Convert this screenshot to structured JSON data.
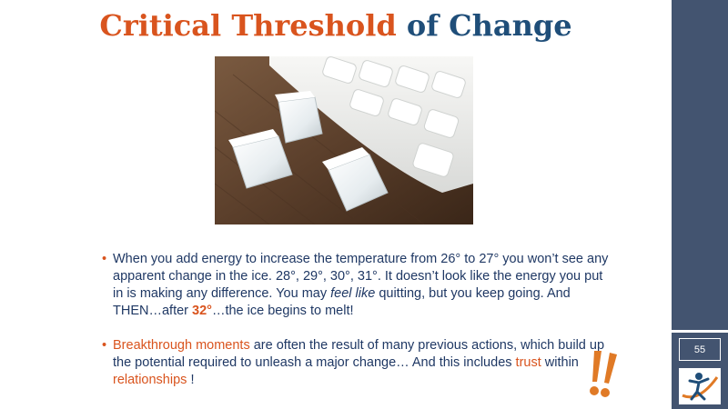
{
  "title": {
    "part1": "Critical Threshold",
    "part2": "of Change"
  },
  "bullet1": {
    "seg1": "When you add energy to increase the temperature from 26° to 27° you won’t see any apparent change in the ice.  28°, 29°, 30°, 31°. It doesn’t look like the energy you put in is making any difference. You may ",
    "emph": "feel like",
    "seg2": " quitting, but you keep going. And THEN…after ",
    "highlight": "32°",
    "seg3": "…the ice begins to melt!"
  },
  "bullet2": {
    "hl1": "Breakthrough moments",
    "seg1": " are often the result of many previous actions, which build up the potential required to unleash a major change… And this includes ",
    "hl2": "trust",
    "seg2": " within ",
    "hl3": "relationships",
    "seg3": " !"
  },
  "bullet_glyph": "•",
  "page_number": "55",
  "colors": {
    "accent": "#d9541e",
    "title_blue": "#1f4e79",
    "body_text": "#1f3864",
    "sidebar": "#435470"
  },
  "icons": {
    "exclamation": "double-exclamation-icon",
    "logo": "figure-logo-icon"
  }
}
